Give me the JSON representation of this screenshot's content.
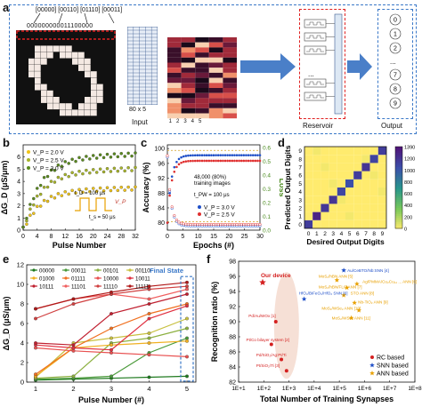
{
  "panel_a": {
    "label": "a",
    "bits_top": "[00000] [00110] [01110] [00011]",
    "bits_row": "000000000011100000",
    "grid_size": "80 x 5",
    "input_label": "Input",
    "reservoir_label": "Reservoir",
    "output_label": "Output",
    "output_digits": [
      "0",
      "1",
      "2",
      "7",
      "8",
      "9"
    ],
    "dots": "..."
  },
  "panel_b": {
    "label": "b",
    "ylabel": "ΔG_D (μS/μm)",
    "xlabel": "Pulse Number",
    "legend": [
      "V_P = 2.0 V",
      "V_P = 2.5 V",
      "V_P = 3.0 V"
    ],
    "annot_t": "t_D = 100 μs",
    "annot_vp": "V_P",
    "annot_tw": "t_s = 50 μs",
    "colors": [
      "#f0c419",
      "#a8b52a",
      "#5a8a1e"
    ]
  },
  "panel_c": {
    "label": "c",
    "ylabel_left": "Accuracy (%)",
    "ylabel_right": "Loss",
    "xlabel": "Epochs (#)",
    "note1": "48,000 (80%)",
    "note2": "training images",
    "note3": "t_PW = 100 μs",
    "legend": [
      "V_P = 3.0 V",
      "V_P = 2.5 V"
    ],
    "colors": [
      "#1f4fc8",
      "#e03030"
    ]
  },
  "panel_d": {
    "label": "d",
    "ylabel": "Predicted Output Digits",
    "xlabel": "Desired Output Digits",
    "colorbar_ticks": [
      "1390",
      "1200",
      "1000",
      "800",
      "600",
      "400",
      "200",
      "0"
    ]
  },
  "panel_e": {
    "label": "e",
    "ylabel": "ΔG_D (μS/μm)",
    "xlabel": "Pulse Number (#)",
    "final_state": "Final State",
    "legend": [
      "00000",
      "00011",
      "00101",
      "00110",
      "01000",
      "01111",
      "10000",
      "10011",
      "10111",
      "11101",
      "11110",
      "11111"
    ],
    "legend_colors": [
      "#1f7a1f",
      "#4a9a3a",
      "#8cb040",
      "#c8c040",
      "#f0b020",
      "#f07020",
      "#e85050",
      "#e03040",
      "#c02030",
      "#f06060",
      "#d04040",
      "#b01818"
    ]
  },
  "panel_f": {
    "label": "f",
    "ylabel": "Recognition ratio (%)",
    "xlabel": "Total Number of Training Synapses",
    "legend": [
      "RC based",
      "SNN based",
      "ANN based"
    ],
    "legend_colors": [
      "#d42020",
      "#1f4fc8",
      "#e8a000"
    ],
    "our_device": "Our device",
    "refs": [
      {
        "text": "Au/CeBTO/Nb:SNN [4]",
        "color": "#1f4fc8"
      },
      {
        "text": "MoS₂/hBN ANN [5]",
        "color": "#e8a000"
      },
      {
        "text": "Ag/PMMA/Cu₂Cu₁₄ ... ANN [6]",
        "color": "#e8a000"
      },
      {
        "text": "HfO₂/BiFeO₃/HfO₂ SNN [6]",
        "color": "#1f4fc8"
      },
      {
        "text": "MoS₂/hBN/FLG ANN [7]",
        "color": "#e8a000"
      },
      {
        "text": "STO ANN [8]",
        "color": "#e8a000"
      },
      {
        "text": "Nb-TiO₂ ANN [9]",
        "color": "#e8a000"
      },
      {
        "text": "MoS₂/WSe₂ ANN [10]",
        "color": "#e8a000"
      },
      {
        "text": "Pd/Au/WOx [1]",
        "color": "#d42020"
      },
      {
        "text": "Pt/Co bilayer system [2]",
        "color": "#d42020"
      },
      {
        "text": "Pd/SiO₂/Ag:Pt/Ti",
        "color": "#d42020"
      },
      {
        "text": "Pt/SiO₂/Ti [3]",
        "color": "#d42020"
      },
      {
        "text": "MoS₂/WSe₂ ANN [11]",
        "color": "#e8a000"
      }
    ]
  },
  "chart_data": [
    {
      "type": "line",
      "panel": "b",
      "xlabel": "Pulse Number",
      "ylabel": "ΔG_D (μS/μm)",
      "xlim": [
        0,
        32
      ],
      "ylim": [
        0,
        7
      ],
      "x": [
        0,
        4,
        8,
        12,
        16,
        20,
        24,
        28,
        32
      ],
      "series": [
        {
          "name": "V_P = 2.0 V",
          "values": [
            0,
            2.0,
            2.5,
            2.8,
            3.0,
            3.1,
            3.2,
            3.3,
            3.4
          ]
        },
        {
          "name": "V_P = 2.5 V",
          "values": [
            0,
            3.0,
            3.7,
            4.1,
            4.4,
            4.6,
            4.8,
            4.9,
            5.0
          ]
        },
        {
          "name": "V_P = 3.0 V",
          "values": [
            0,
            4.0,
            4.8,
            5.3,
            5.6,
            5.8,
            6.0,
            6.1,
            6.2
          ]
        }
      ]
    },
    {
      "type": "line",
      "panel": "c",
      "xlabel": "Epochs (#)",
      "ylabel": "Accuracy (%)",
      "xlim": [
        0,
        30
      ],
      "ylim": [
        78,
        101
      ],
      "x": [
        0,
        2,
        4,
        6,
        10,
        15,
        20,
        25,
        30
      ],
      "series": [
        {
          "name": "V_P = 3.0 V",
          "values": [
            80,
            94,
            96,
            97,
            97.5,
            97.8,
            98,
            98.1,
            98.2
          ]
        },
        {
          "name": "V_P = 2.5 V",
          "values": [
            80,
            92,
            94,
            95,
            95.8,
            96.2,
            96.5,
            96.6,
            96.7
          ]
        }
      ]
    },
    {
      "type": "heatmap",
      "panel": "d",
      "xlabel": "Desired Output Digits",
      "ylabel": "Predicted Output Digits",
      "x": [
        0,
        1,
        2,
        3,
        4,
        5,
        6,
        7,
        8,
        9
      ],
      "y": [
        0,
        1,
        2,
        3,
        4,
        5,
        6,
        7,
        8,
        9
      ],
      "diagonal_values": [
        1150,
        1300,
        1180,
        1200,
        1100,
        1050,
        1150,
        1200,
        1120,
        1150
      ],
      "zlim": [
        0,
        1390
      ]
    },
    {
      "type": "line",
      "panel": "e",
      "xlabel": "Pulse Number (#)",
      "ylabel": "ΔG_D (μS/μm)",
      "xlim": [
        1,
        5
      ],
      "ylim": [
        0,
        12
      ],
      "x": [
        1,
        2,
        3,
        4,
        5
      ],
      "series": [
        {
          "name": "00000",
          "values": [
            0.2,
            0.3,
            0.4,
            0.5,
            0.6
          ]
        },
        {
          "name": "00011",
          "values": [
            0.3,
            0.4,
            0.6,
            3.0,
            4.5
          ]
        },
        {
          "name": "00101",
          "values": [
            0.4,
            0.6,
            4.0,
            4.5,
            5.5
          ]
        },
        {
          "name": "00110",
          "values": [
            0.5,
            4.0,
            4.5,
            5.0,
            6.5
          ]
        },
        {
          "name": "01000",
          "values": [
            0.6,
            3.5,
            3.8,
            4.0,
            4.2
          ]
        },
        {
          "name": "01111",
          "values": [
            0.8,
            3.5,
            5.5,
            7.0,
            8.0
          ]
        },
        {
          "name": "10000",
          "values": [
            3.5,
            3.2,
            3.0,
            2.8,
            2.6
          ]
        },
        {
          "name": "10011",
          "values": [
            3.8,
            3.5,
            3.3,
            6.5,
            7.8
          ]
        },
        {
          "name": "10111",
          "values": [
            4.0,
            3.8,
            7.0,
            8.0,
            9.0
          ]
        },
        {
          "name": "11101",
          "values": [
            7.5,
            8.5,
            9.0,
            8.5,
            9.5
          ]
        },
        {
          "name": "11110",
          "values": [
            6.5,
            8.0,
            9.0,
            9.5,
            9.8
          ]
        },
        {
          "name": "11111",
          "values": [
            7.5,
            8.5,
            9.2,
            9.8,
            10.2
          ]
        }
      ]
    },
    {
      "type": "scatter",
      "panel": "f",
      "xlabel": "Total Number of Training Synapses",
      "ylabel": "Recognition ratio (%)",
      "xscale": "log",
      "xlim": [
        1,
        100000000
      ],
      "ylim": [
        82,
        98
      ],
      "xticks": [
        "1E+1",
        "1E+2",
        "1E+3",
        "1E+4",
        "1E+5",
        "1E+6",
        "1E+7",
        "1E+8"
      ],
      "yticks": [
        82,
        84,
        86,
        88,
        90,
        92,
        94,
        96,
        98
      ],
      "points": [
        {
          "x": 90,
          "y": 95.2,
          "group": "RC based",
          "label": "Our device"
        },
        {
          "x": 300,
          "y": 90.0,
          "group": "RC based"
        },
        {
          "x": 200,
          "y": 87.0,
          "group": "RC based"
        },
        {
          "x": 500,
          "y": 85.0,
          "group": "RC based"
        },
        {
          "x": 800,
          "y": 83.5,
          "group": "RC based"
        },
        {
          "x": 150000,
          "y": 96.8,
          "group": "SNN based"
        },
        {
          "x": 4000,
          "y": 93.0,
          "group": "SNN based"
        },
        {
          "x": 80000,
          "y": 95.5,
          "group": "ANN based"
        },
        {
          "x": 500000,
          "y": 95.0,
          "group": "ANN based"
        },
        {
          "x": 200000,
          "y": 94.5,
          "group": "ANN based"
        },
        {
          "x": 150000,
          "y": 93.5,
          "group": "ANN based"
        },
        {
          "x": 400000,
          "y": 92.5,
          "group": "ANN based"
        },
        {
          "x": 600000,
          "y": 91.5,
          "group": "ANN based"
        },
        {
          "x": 300000,
          "y": 90.5,
          "group": "ANN based"
        }
      ]
    }
  ]
}
